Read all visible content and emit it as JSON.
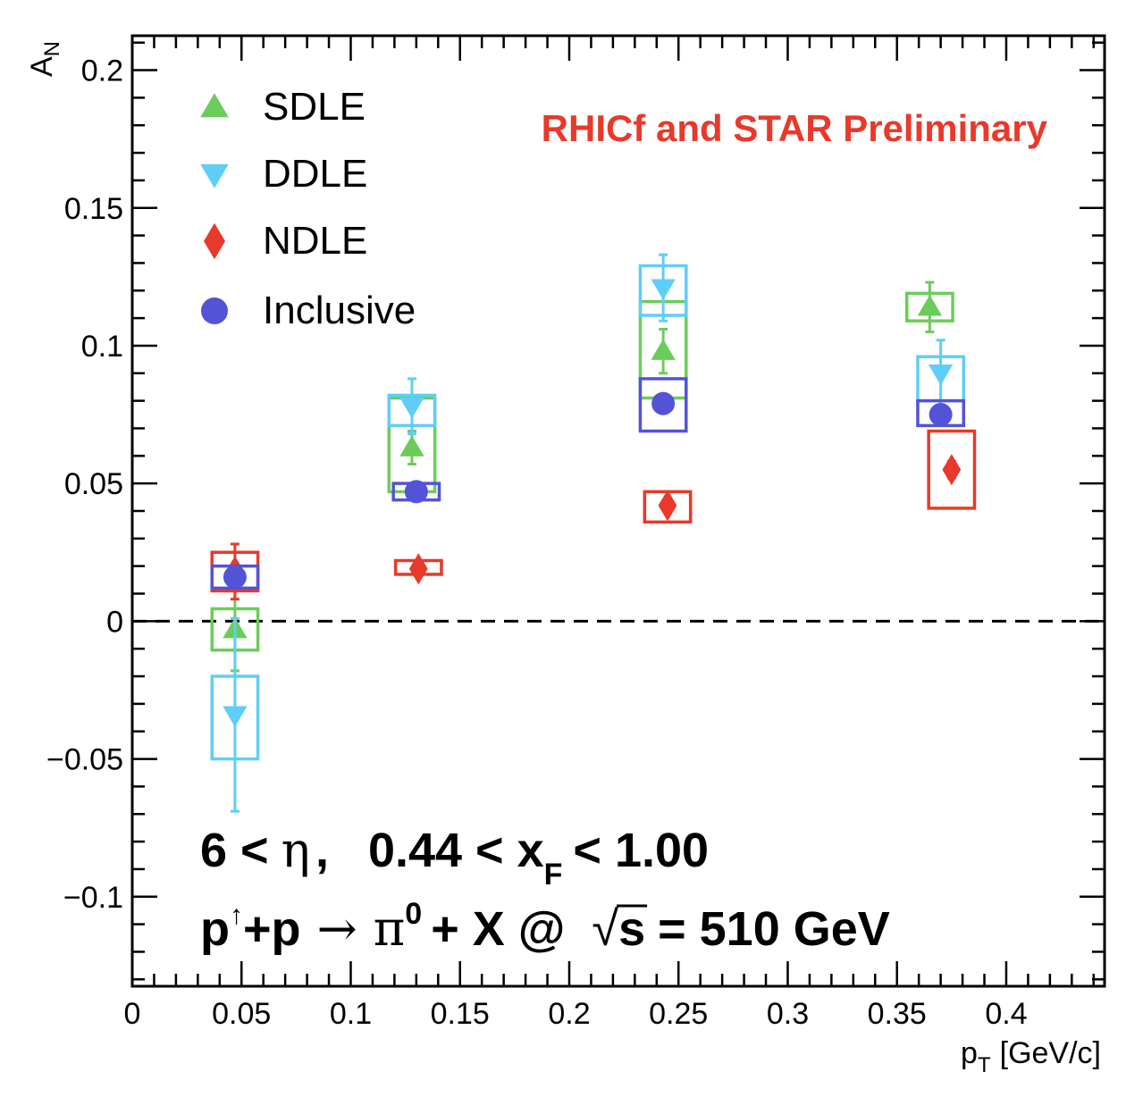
{
  "chart_data": {
    "type": "scatter",
    "title": "",
    "xlabel": "p_T [GeV/c]",
    "ylabel": "A_N",
    "xlim": [
      0,
      0.445
    ],
    "ylim": [
      -0.1325,
      0.2125
    ],
    "x_ticks": [
      "0",
      "0.05",
      "0.1",
      "0.15",
      "0.2",
      "0.25",
      "0.3",
      "0.35",
      "0.4"
    ],
    "x_tick_values": [
      0,
      0.05,
      0.1,
      0.15,
      0.2,
      0.25,
      0.3,
      0.35,
      0.4
    ],
    "y_ticks": [
      "0.2",
      "0.15",
      "0.1",
      "0.05",
      "0",
      "−0.05",
      "−0.1"
    ],
    "y_tick_values": [
      0.2,
      0.15,
      0.1,
      0.05,
      0,
      -0.05,
      -0.1
    ],
    "grid": false,
    "zero_line": "dashed",
    "legend_placement": "top-left",
    "series": [
      {
        "name": "SDLE",
        "marker": "triangle-up",
        "color": "#6ccc5a",
        "points": [
          {
            "x": 0.047,
            "y": -0.003,
            "stat_err": 0.015,
            "sys_lo": -0.0105,
            "sys_hi": 0.0045,
            "box_half_width": 0.0105
          },
          {
            "x": 0.128,
            "y": 0.063,
            "stat_err": 0.006,
            "sys_lo": 0.047,
            "sys_hi": 0.081,
            "box_half_width": 0.0105
          },
          {
            "x": 0.243,
            "y": 0.098,
            "stat_err": 0.008,
            "sys_lo": 0.081,
            "sys_hi": 0.116,
            "box_half_width": 0.0105
          },
          {
            "x": 0.365,
            "y": 0.114,
            "stat_err": 0.009,
            "sys_lo": 0.109,
            "sys_hi": 0.119,
            "box_half_width": 0.0105
          }
        ]
      },
      {
        "name": "DDLE",
        "marker": "triangle-down",
        "color": "#5fcef6",
        "points": [
          {
            "x": 0.047,
            "y": -0.034,
            "stat_err": 0.035,
            "sys_lo": -0.05,
            "sys_hi": -0.02,
            "box_half_width": 0.0105
          },
          {
            "x": 0.128,
            "y": 0.078,
            "stat_err": 0.01,
            "sys_lo": 0.071,
            "sys_hi": 0.082,
            "box_half_width": 0.0105
          },
          {
            "x": 0.243,
            "y": 0.121,
            "stat_err": 0.012,
            "sys_lo": 0.111,
            "sys_hi": 0.129,
            "box_half_width": 0.0105
          },
          {
            "x": 0.37,
            "y": 0.09,
            "stat_err": 0.012,
            "sys_lo": 0.08,
            "sys_hi": 0.096,
            "box_half_width": 0.0105
          }
        ]
      },
      {
        "name": "NDLE",
        "marker": "diamond",
        "color": "#e8392a",
        "points": [
          {
            "x": 0.047,
            "y": 0.018,
            "stat_err": 0.01,
            "sys_lo": 0.011,
            "sys_hi": 0.025,
            "box_half_width": 0.0105
          },
          {
            "x": 0.131,
            "y": 0.019,
            "stat_err": 0.002,
            "sys_lo": 0.017,
            "sys_hi": 0.022,
            "box_half_width": 0.0105
          },
          {
            "x": 0.245,
            "y": 0.042,
            "stat_err": 0.002,
            "sys_lo": 0.036,
            "sys_hi": 0.047,
            "box_half_width": 0.0105
          },
          {
            "x": 0.375,
            "y": 0.055,
            "stat_err": 0.003,
            "sys_lo": 0.041,
            "sys_hi": 0.069,
            "box_half_width": 0.0105
          }
        ]
      },
      {
        "name": "Inclusive",
        "marker": "circle",
        "color": "#5353d8",
        "points": [
          {
            "x": 0.047,
            "y": 0.016,
            "stat_err": 0.002,
            "sys_lo": 0.012,
            "sys_hi": 0.02,
            "box_half_width": 0.0105
          },
          {
            "x": 0.13,
            "y": 0.047,
            "stat_err": 0.002,
            "sys_lo": 0.044,
            "sys_hi": 0.05,
            "box_half_width": 0.0105
          },
          {
            "x": 0.243,
            "y": 0.079,
            "stat_err": 0.003,
            "sys_lo": 0.069,
            "sys_hi": 0.088,
            "box_half_width": 0.0105
          },
          {
            "x": 0.37,
            "y": 0.075,
            "stat_err": 0.002,
            "sys_lo": 0.071,
            "sys_hi": 0.08,
            "box_half_width": 0.0105
          }
        ]
      }
    ],
    "annotations": {
      "preliminary": "RHICf and STAR Preliminary",
      "line1_eta_lhs": "6 <",
      "line1_eta_sym": "η",
      "line1_sep": ",",
      "line1_xf_lhs": "0.44 < x",
      "line1_xf_sub": "F",
      "line1_xf_rhs": "< 1.00",
      "line2_p": "p",
      "line2_up": "↑",
      "line2_plus_p": "+p",
      "line2_arrow": "→",
      "line2_pi": "π",
      "line2_pi_sup": "0",
      "line2_rest": "+ X @",
      "line2_sqrt": "√",
      "line2_s": "s",
      "line2_energy": "= 510 GeV"
    },
    "axis_text": {
      "x_main": "p",
      "x_sub": "T",
      "x_unit": "[GeV/c]",
      "y_main": "A",
      "y_sub": "N"
    }
  }
}
